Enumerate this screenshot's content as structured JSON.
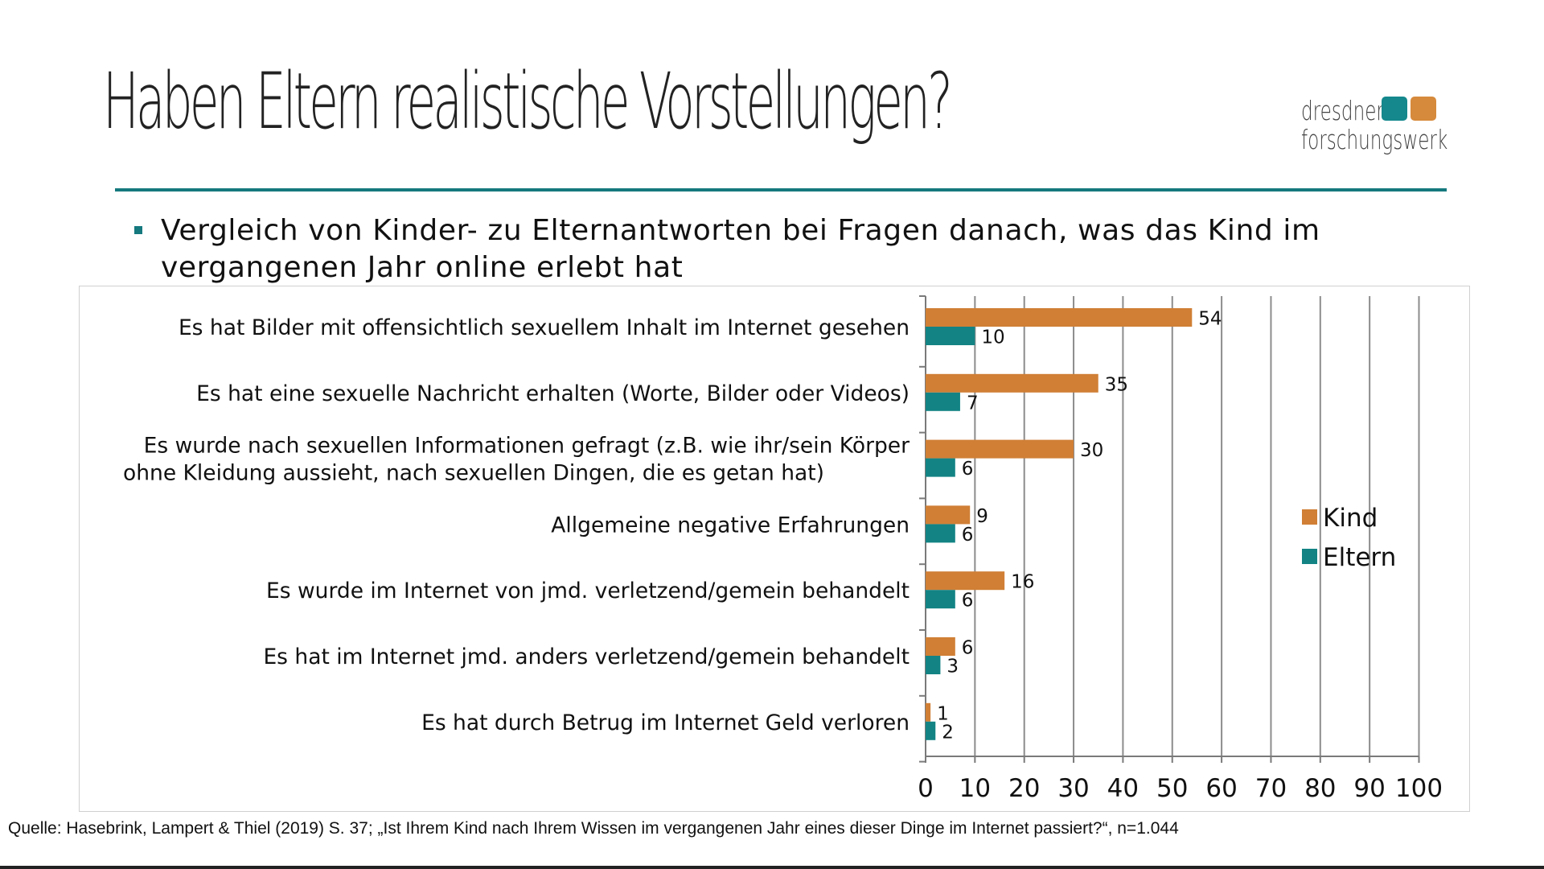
{
  "slide": {
    "title": "Haben Eltern realistische Vorstellungen?",
    "bullet": "Vergleich von Kinder- zu Elternantworten bei Fragen danach, was das Kind im vergangenen Jahr online erlebt hat",
    "source": "Quelle: Hasebrink, Lampert & Thiel (2019) S. 37; „Ist Ihrem Kind nach Ihrem Wissen im vergangenen Jahr eines dieser Dinge im Internet passiert?“, n=1.044"
  },
  "logo": {
    "line1": "dresdner",
    "line2": "forschungswerk"
  },
  "colors": {
    "kind": "#d07f35",
    "eltern": "#138384",
    "rule": "#15797e",
    "grid": "#8c8c8c"
  },
  "chart_data": {
    "type": "bar",
    "orientation": "horizontal",
    "categories": [
      [
        "Es hat Bilder mit offensichtlich sexuellem Inhalt im Internet gesehen"
      ],
      [
        "Es hat eine sexuelle Nachricht erhalten (Worte, Bilder oder Videos)"
      ],
      [
        "Es wurde nach sexuellen Informationen gefragt (z.B. wie ihr/sein Körper",
        "ohne Kleidung aussieht, nach sexuellen Dingen, die es getan hat)"
      ],
      [
        "Allgemeine negative Erfahrungen"
      ],
      [
        "Es wurde im Internet von jmd. verletzend/gemein behandelt"
      ],
      [
        "Es hat im Internet jmd. anders verletzend/gemein behandelt"
      ],
      [
        "Es hat durch Betrug im Internet Geld verloren"
      ]
    ],
    "series": [
      {
        "name": "Kind",
        "values": [
          54,
          35,
          30,
          9,
          16,
          6,
          1
        ]
      },
      {
        "name": "Eltern",
        "values": [
          10,
          7,
          6,
          6,
          6,
          3,
          2
        ]
      }
    ],
    "xlim": [
      0,
      100
    ],
    "xticks": [
      0,
      10,
      20,
      30,
      40,
      50,
      60,
      70,
      80,
      90,
      100
    ],
    "grid": true,
    "legend": "right"
  }
}
